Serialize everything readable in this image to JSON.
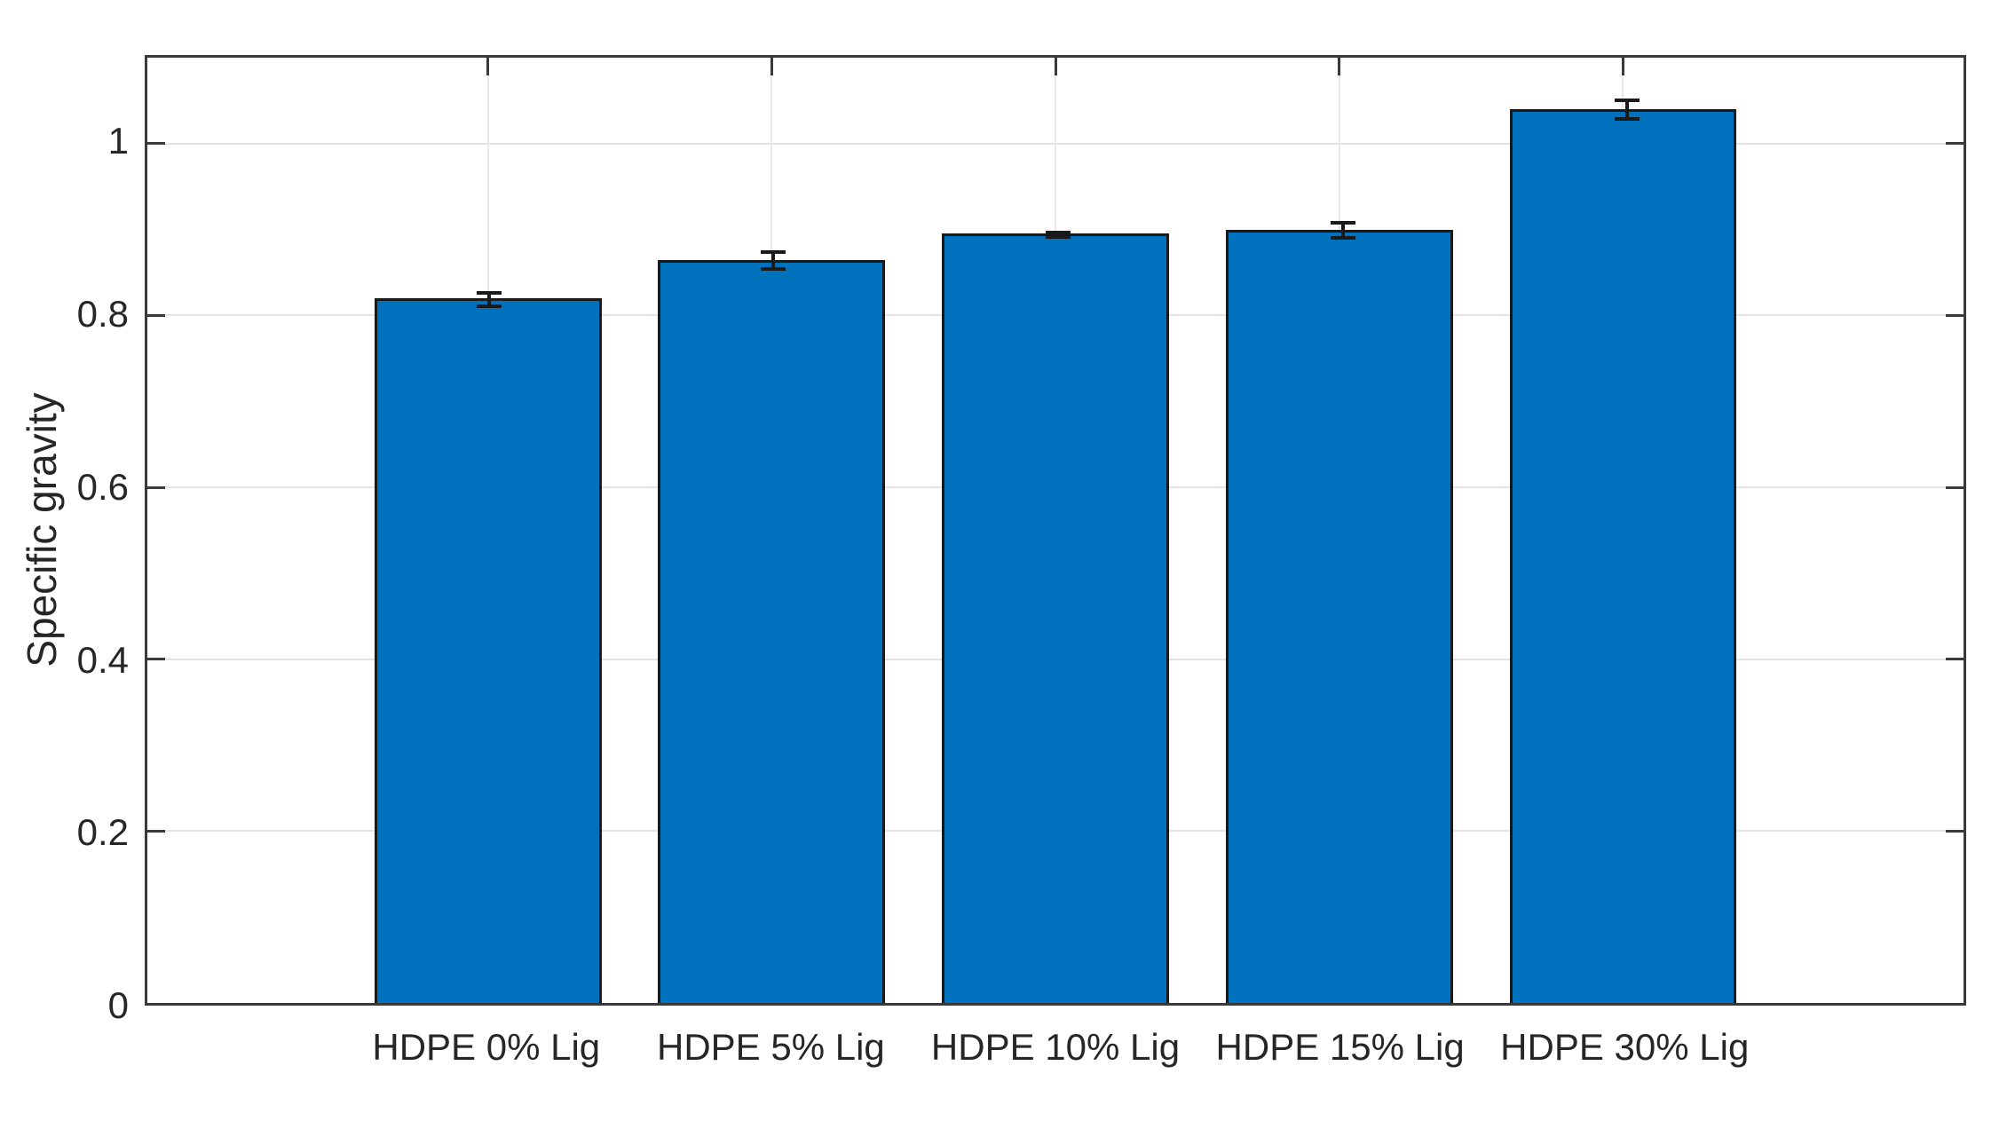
{
  "chart_data": {
    "type": "bar",
    "title": "",
    "xlabel": "",
    "ylabel": "Specific gravity",
    "categories": [
      "HDPE 0% Lig",
      "HDPE 5% Lig",
      "HDPE 10% Lig",
      "HDPE 15% Lig",
      "HDPE 30% Lig"
    ],
    "values": [
      0.82,
      0.865,
      0.895,
      0.9,
      1.04
    ],
    "errors": [
      0.01,
      0.012,
      0.005,
      0.011,
      0.013
    ],
    "ylim": [
      0,
      1.1
    ],
    "yticks": [
      0,
      0.2,
      0.4,
      0.6,
      0.8,
      1
    ],
    "ytick_labels": [
      "0",
      "0.2",
      "0.4",
      "0.6",
      "0.8",
      "1"
    ],
    "grid": true,
    "legend": "none",
    "bar_color": "#0072BD",
    "bar_edge_color": "#1a1a1a",
    "axis_color": "#3a3a3a",
    "grid_color": "#e4e4e4",
    "text_color": "#262626"
  }
}
